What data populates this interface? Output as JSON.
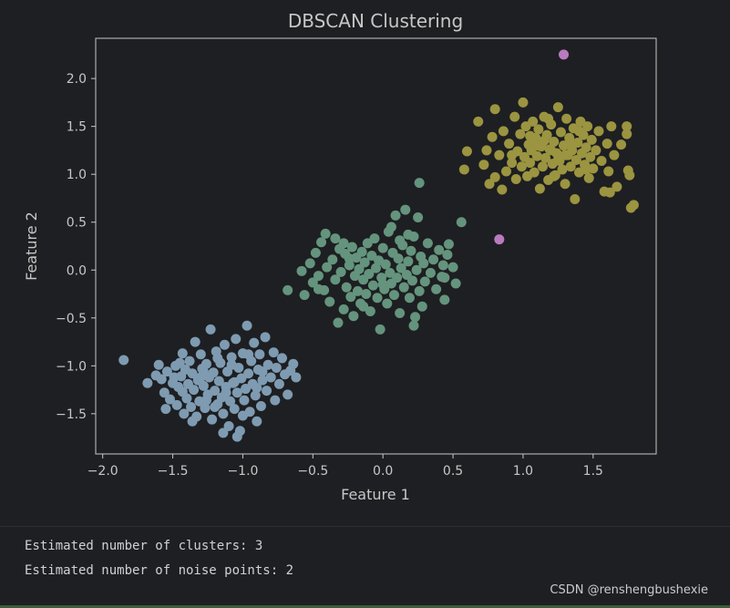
{
  "chart_data": {
    "type": "scatter",
    "title": "DBSCAN Clustering",
    "xlabel": "Feature 1",
    "ylabel": "Feature 2",
    "xlim": [
      -2.05,
      1.95
    ],
    "ylim": [
      -1.92,
      2.42
    ],
    "xticks": [
      -2.0,
      -1.5,
      -1.0,
      -0.5,
      0.0,
      0.5,
      1.0,
      1.5
    ],
    "xtick_labels": [
      "−2.0",
      "−1.5",
      "−1.0",
      "−0.5",
      "0.0",
      "0.5",
      "1.0",
      "1.5"
    ],
    "yticks": [
      -1.5,
      -1.0,
      -0.5,
      0.0,
      0.5,
      1.0,
      1.5,
      2.0
    ],
    "ytick_labels": [
      "−1.5",
      "−1.0",
      "−0.5",
      "0.0",
      "0.5",
      "1.0",
      "1.5",
      "2.0"
    ],
    "grid": false,
    "legend": "none",
    "background": "#1e1f22",
    "axes_color": "#c7c7c7",
    "series": [
      {
        "color": "#7e9bb1",
        "points": [
          [
            -1.85,
            -0.94
          ],
          [
            -1.68,
            -1.18
          ],
          [
            -1.62,
            -1.1
          ],
          [
            -1.58,
            -1.14
          ],
          [
            -1.56,
            -1.28
          ],
          [
            -1.54,
            -1.06
          ],
          [
            -1.52,
            -1.35
          ],
          [
            -1.5,
            -1.18
          ],
          [
            -1.48,
            -1.0
          ],
          [
            -1.47,
            -1.41
          ],
          [
            -1.46,
            -1.22
          ],
          [
            -1.45,
            -0.97
          ],
          [
            -1.44,
            -1.11
          ],
          [
            -1.43,
            -1.27
          ],
          [
            -1.42,
            -1.5
          ],
          [
            -1.41,
            -1.04
          ],
          [
            -1.4,
            -1.34
          ],
          [
            -1.39,
            -1.19
          ],
          [
            -1.38,
            -0.95
          ],
          [
            -1.37,
            -1.43
          ],
          [
            -1.36,
            -1.08
          ],
          [
            -1.35,
            -1.25
          ],
          [
            -1.34,
            -0.75
          ],
          [
            -1.33,
            -1.53
          ],
          [
            -1.32,
            -1.15
          ],
          [
            -1.31,
            -1.37
          ],
          [
            -1.3,
            -0.88
          ],
          [
            -1.29,
            -1.03
          ],
          [
            -1.28,
            -1.21
          ],
          [
            -1.27,
            -1.44
          ],
          [
            -1.26,
            -0.98
          ],
          [
            -1.25,
            -1.3
          ],
          [
            -1.24,
            -1.12
          ],
          [
            -1.23,
            -0.62
          ],
          [
            -1.22,
            -1.56
          ],
          [
            -1.21,
            -1.07
          ],
          [
            -1.2,
            -1.26
          ],
          [
            -1.19,
            -0.85
          ],
          [
            -1.18,
            -1.4
          ],
          [
            -1.17,
            -1.16
          ],
          [
            -1.16,
            -0.97
          ],
          [
            -1.15,
            -1.33
          ],
          [
            -1.14,
            -1.5
          ],
          [
            -1.13,
            -0.78
          ],
          [
            -1.12,
            -1.22
          ],
          [
            -1.11,
            -1.06
          ],
          [
            -1.1,
            -1.63
          ],
          [
            -1.09,
            -1.37
          ],
          [
            -1.08,
            -0.91
          ],
          [
            -1.07,
            -1.18
          ],
          [
            -1.06,
            -1.45
          ],
          [
            -1.05,
            -0.72
          ],
          [
            -1.04,
            -1.28
          ],
          [
            -1.03,
            -1.02
          ],
          [
            -1.02,
            -1.68
          ],
          [
            -1.01,
            -1.13
          ],
          [
            -1.0,
            -0.87
          ],
          [
            -0.99,
            -1.36
          ],
          [
            -0.98,
            -1.24
          ],
          [
            -0.97,
            -0.58
          ],
          [
            -0.96,
            -1.08
          ],
          [
            -0.95,
            -1.48
          ],
          [
            -0.94,
            -0.95
          ],
          [
            -0.93,
            -1.19
          ],
          [
            -0.92,
            -0.76
          ],
          [
            -0.91,
            -1.31
          ],
          [
            -0.9,
            -1.58
          ],
          [
            -0.89,
            -1.04
          ],
          [
            -0.88,
            -0.88
          ],
          [
            -0.87,
            -1.42
          ],
          [
            -0.86,
            -1.15
          ],
          [
            -0.84,
            -0.7
          ],
          [
            -0.83,
            -1.26
          ],
          [
            -0.82,
            -0.99
          ],
          [
            -0.8,
            -1.12
          ],
          [
            -0.78,
            -0.86
          ],
          [
            -0.77,
            -1.36
          ],
          [
            -0.76,
            -1.02
          ],
          [
            -0.74,
            -1.19
          ],
          [
            -0.72,
            -0.92
          ],
          [
            -0.7,
            -1.09
          ],
          [
            -0.68,
            -1.3
          ],
          [
            -0.66,
            -1.05
          ],
          [
            -0.64,
            -0.98
          ],
          [
            -0.62,
            -1.12
          ],
          [
            -1.6,
            -0.99
          ],
          [
            -1.55,
            -1.45
          ],
          [
            -1.36,
            -1.58
          ],
          [
            -1.28,
            -1.06
          ],
          [
            -1.2,
            -1.43
          ],
          [
            -1.14,
            -1.7
          ],
          [
            -1.12,
            -1.28
          ],
          [
            -1.06,
            -1.17
          ],
          [
            -1.0,
            -1.52
          ],
          [
            -0.96,
            -0.88
          ],
          [
            -0.9,
            -1.23
          ],
          [
            -1.43,
            -0.87
          ],
          [
            -1.3,
            -1.12
          ],
          [
            -1.18,
            -0.92
          ],
          [
            -1.08,
            -0.99
          ],
          [
            -0.86,
            -1.06
          ],
          [
            -1.26,
            -1.36
          ],
          [
            -1.49,
            -1.12
          ],
          [
            -1.04,
            -1.74
          ]
        ]
      },
      {
        "color": "#64947d",
        "points": [
          [
            -0.68,
            -0.21
          ],
          [
            -0.58,
            -0.01
          ],
          [
            -0.56,
            -0.26
          ],
          [
            -0.52,
            0.07
          ],
          [
            -0.5,
            -0.13
          ],
          [
            -0.48,
            0.18
          ],
          [
            -0.46,
            -0.06
          ],
          [
            -0.44,
            0.29
          ],
          [
            -0.42,
            -0.21
          ],
          [
            -0.41,
            0.38
          ],
          [
            -0.4,
            0.03
          ],
          [
            -0.38,
            -0.33
          ],
          [
            -0.36,
            0.11
          ],
          [
            -0.34,
            -0.1
          ],
          [
            -0.32,
            -0.55
          ],
          [
            -0.31,
            0.22
          ],
          [
            -0.3,
            -0.02
          ],
          [
            -0.28,
            -0.41
          ],
          [
            -0.27,
            0.17
          ],
          [
            -0.26,
            -0.18
          ],
          [
            -0.24,
            0.05
          ],
          [
            -0.23,
            -0.28
          ],
          [
            -0.22,
            0.24
          ],
          [
            -0.21,
            -0.48
          ],
          [
            -0.2,
            -0.06
          ],
          [
            -0.19,
            0.13
          ],
          [
            -0.18,
            -0.22
          ],
          [
            -0.17,
            0.01
          ],
          [
            -0.16,
            -0.35
          ],
          [
            -0.15,
            0.19
          ],
          [
            -0.14,
            -0.1
          ],
          [
            -0.13,
            0.08
          ],
          [
            -0.12,
            -0.25
          ],
          [
            -0.11,
            0.28
          ],
          [
            -0.1,
            -0.04
          ],
          [
            -0.09,
            -0.43
          ],
          [
            -0.08,
            0.15
          ],
          [
            -0.07,
            -0.16
          ],
          [
            -0.06,
            0.33
          ],
          [
            -0.05,
            0.02
          ],
          [
            -0.04,
            -0.29
          ],
          [
            -0.03,
            0.1
          ],
          [
            -0.02,
            -0.62
          ],
          [
            -0.01,
            -0.08
          ],
          [
            0.0,
            0.23
          ],
          [
            0.01,
            -0.2
          ],
          [
            0.02,
            0.06
          ],
          [
            0.03,
            -0.35
          ],
          [
            0.04,
            0.4
          ],
          [
            0.05,
            -0.03
          ],
          [
            0.06,
            -0.14
          ],
          [
            0.07,
            0.18
          ],
          [
            0.08,
            -0.26
          ],
          [
            0.09,
            0.57
          ],
          [
            0.1,
            -0.08
          ],
          [
            0.11,
            0.12
          ],
          [
            0.12,
            -0.45
          ],
          [
            0.13,
            0.02
          ],
          [
            0.14,
            0.26
          ],
          [
            0.15,
            -0.18
          ],
          [
            0.16,
            0.63
          ],
          [
            0.17,
            -0.05
          ],
          [
            0.18,
            0.09
          ],
          [
            0.19,
            -0.29
          ],
          [
            0.2,
            0.2
          ],
          [
            0.21,
            -0.11
          ],
          [
            0.22,
            0.35
          ],
          [
            0.23,
            -0.49
          ],
          [
            0.24,
            0.0
          ],
          [
            0.25,
            0.55
          ],
          [
            0.26,
            -0.22
          ],
          [
            0.27,
            0.14
          ],
          [
            0.28,
            -0.38
          ],
          [
            0.29,
            0.07
          ],
          [
            0.3,
            -0.12
          ],
          [
            0.32,
            0.28
          ],
          [
            0.34,
            -0.03
          ],
          [
            0.36,
            0.11
          ],
          [
            0.38,
            -0.2
          ],
          [
            0.4,
            0.21
          ],
          [
            0.42,
            -0.07
          ],
          [
            0.43,
            0.05
          ],
          [
            0.44,
            -0.31
          ],
          [
            0.46,
            0.16
          ],
          [
            0.47,
            0.27
          ],
          [
            0.5,
            0.03
          ],
          [
            0.52,
            -0.14
          ],
          [
            0.26,
            0.91
          ],
          [
            0.56,
            0.5
          ],
          [
            -0.34,
            0.33
          ],
          [
            0.06,
            0.45
          ],
          [
            -0.14,
            -0.38
          ],
          [
            0.22,
            -0.58
          ],
          [
            0.44,
            -0.08
          ],
          [
            -0.24,
            0.12
          ],
          [
            0.12,
            0.31
          ],
          [
            -0.46,
            -0.2
          ],
          [
            0.0,
            -0.15
          ],
          [
            0.18,
            0.37
          ],
          [
            -0.28,
            0.28
          ]
        ]
      },
      {
        "color": "#9b9440",
        "points": [
          [
            0.58,
            1.05
          ],
          [
            0.6,
            1.24
          ],
          [
            0.68,
            1.55
          ],
          [
            0.72,
            1.1
          ],
          [
            0.76,
            0.9
          ],
          [
            0.78,
            1.39
          ],
          [
            0.8,
            0.97
          ],
          [
            0.8,
            1.68
          ],
          [
            0.83,
            1.2
          ],
          [
            0.85,
            0.84
          ],
          [
            0.86,
            1.45
          ],
          [
            0.88,
            1.03
          ],
          [
            0.9,
            1.32
          ],
          [
            0.92,
            1.12
          ],
          [
            0.94,
            1.6
          ],
          [
            0.95,
            0.95
          ],
          [
            0.96,
            1.24
          ],
          [
            0.98,
            1.42
          ],
          [
            0.99,
            1.08
          ],
          [
            1.0,
            1.75
          ],
          [
            1.01,
            1.18
          ],
          [
            1.02,
            1.5
          ],
          [
            1.03,
            0.98
          ],
          [
            1.04,
            1.31
          ],
          [
            1.05,
            1.12
          ],
          [
            1.06,
            1.25
          ],
          [
            1.07,
            1.55
          ],
          [
            1.08,
            1.02
          ],
          [
            1.09,
            1.38
          ],
          [
            1.1,
            1.19
          ],
          [
            1.11,
            1.47
          ],
          [
            1.12,
            0.85
          ],
          [
            1.13,
            1.29
          ],
          [
            1.14,
            1.08
          ],
          [
            1.15,
            1.6
          ],
          [
            1.16,
            1.17
          ],
          [
            1.17,
            1.41
          ],
          [
            1.18,
            0.94
          ],
          [
            1.19,
            1.26
          ],
          [
            1.2,
            1.52
          ],
          [
            1.21,
            1.11
          ],
          [
            1.22,
            1.34
          ],
          [
            1.23,
            0.99
          ],
          [
            1.24,
            1.22
          ],
          [
            1.25,
            1.7
          ],
          [
            1.26,
            1.14
          ],
          [
            1.27,
            1.44
          ],
          [
            1.28,
            1.05
          ],
          [
            1.29,
            1.3
          ],
          [
            1.3,
            0.9
          ],
          [
            1.31,
            1.58
          ],
          [
            1.32,
            1.2
          ],
          [
            1.33,
            1.38
          ],
          [
            1.34,
            1.08
          ],
          [
            1.35,
            1.25
          ],
          [
            1.36,
            1.48
          ],
          [
            1.37,
            0.74
          ],
          [
            1.38,
            1.15
          ],
          [
            1.39,
            1.33
          ],
          [
            1.4,
            1.02
          ],
          [
            1.41,
            1.55
          ],
          [
            1.42,
            1.22
          ],
          [
            1.43,
            1.41
          ],
          [
            1.44,
            1.1
          ],
          [
            1.45,
            1.28
          ],
          [
            1.46,
            1.5
          ],
          [
            1.47,
            0.96
          ],
          [
            1.48,
            1.18
          ],
          [
            1.49,
            1.36
          ],
          [
            1.5,
            1.06
          ],
          [
            1.52,
            1.25
          ],
          [
            1.54,
            1.45
          ],
          [
            1.56,
            1.14
          ],
          [
            1.58,
            0.82
          ],
          [
            1.6,
            1.32
          ],
          [
            1.61,
            1.03
          ],
          [
            1.63,
            1.5
          ],
          [
            1.65,
            1.2
          ],
          [
            1.67,
            0.87
          ],
          [
            1.7,
            1.31
          ],
          [
            1.74,
            1.42
          ],
          [
            1.74,
            1.5
          ],
          [
            1.76,
            0.99
          ],
          [
            1.77,
            0.65
          ],
          [
            1.79,
            0.68
          ],
          [
            1.75,
            1.04
          ],
          [
            1.1,
            1.3
          ],
          [
            1.2,
            1.25
          ],
          [
            1.3,
            1.2
          ],
          [
            1.15,
            1.35
          ],
          [
            1.25,
            1.15
          ],
          [
            1.35,
            1.3
          ],
          [
            0.92,
            1.2
          ],
          [
            1.4,
            1.45
          ],
          [
            1.05,
            1.4
          ],
          [
            1.45,
            1.05
          ],
          [
            1.62,
            0.81
          ],
          [
            0.74,
            1.25
          ],
          [
            1.22,
            0.98
          ],
          [
            1.18,
            1.58
          ]
        ]
      },
      {
        "color": "#b97ac0",
        "points": [
          [
            1.29,
            2.25
          ],
          [
            0.83,
            0.32
          ]
        ]
      }
    ]
  },
  "console": {
    "lines": [
      "Estimated number of clusters: 3",
      "Estimated number of noise points: 2"
    ]
  },
  "watermark": "CSDN @renshengbushexie"
}
